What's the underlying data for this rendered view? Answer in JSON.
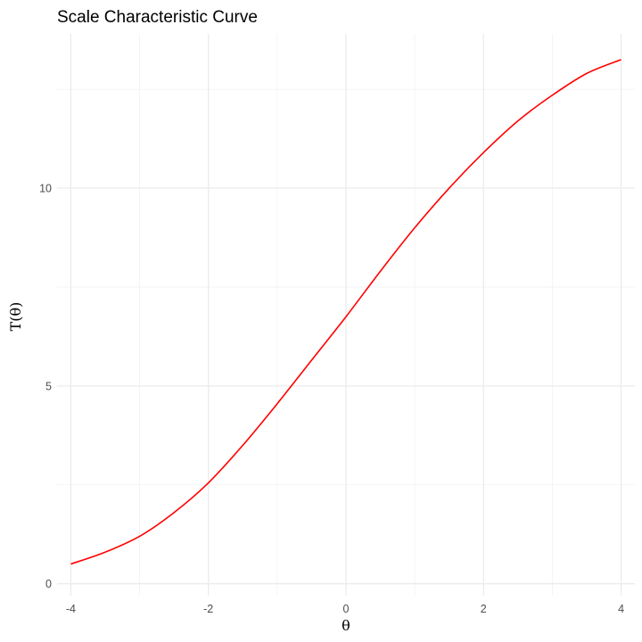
{
  "chart_data": {
    "type": "line",
    "title": "Scale Characteristic Curve",
    "xlabel": "θ",
    "ylabel": "T(θ)",
    "xlim": [
      -4.2,
      4.2
    ],
    "ylim": [
      -0.3,
      13.9
    ],
    "x_ticks": [
      -4,
      -2,
      0,
      2,
      4
    ],
    "x_tick_labels": [
      "-4",
      "-2",
      "0",
      "2",
      "4"
    ],
    "y_ticks": [
      0,
      5,
      10
    ],
    "y_tick_labels": [
      "0",
      "5",
      "10"
    ],
    "grid": true,
    "legend": "none",
    "series": [
      {
        "color": "#ff0000",
        "x": [
          -4,
          -3.5,
          -3,
          -2.5,
          -2,
          -1.5,
          -1,
          -0.5,
          0,
          0.5,
          1,
          1.5,
          2,
          2.5,
          3,
          3.5,
          4
        ],
        "y": [
          0.5,
          0.8,
          1.2,
          1.8,
          2.55,
          3.5,
          4.55,
          5.65,
          6.75,
          7.9,
          9.0,
          10.0,
          10.9,
          11.7,
          12.35,
          12.9,
          13.25
        ]
      }
    ]
  }
}
